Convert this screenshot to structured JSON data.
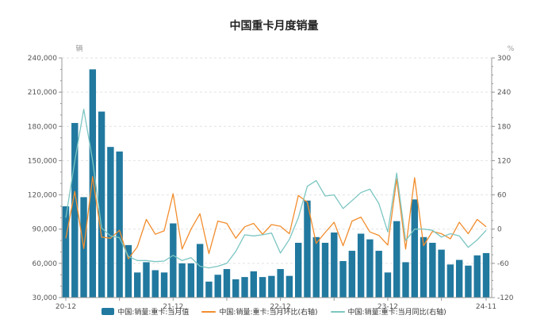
{
  "title": "中国重卡月度销量",
  "left_axis": {
    "unit": "辆",
    "min": 30000,
    "max": 240000,
    "step": 30000,
    "tick_labels": [
      "30,000",
      "60,000",
      "90,000",
      "120,000",
      "150,000",
      "180,000",
      "210,000",
      "240,000"
    ]
  },
  "right_axis": {
    "unit": "%",
    "min": -120,
    "max": 300,
    "step": 60,
    "tick_labels": [
      "-120",
      "-60",
      "0",
      "60",
      "120",
      "180",
      "240",
      "300"
    ]
  },
  "x_axis": {
    "tick_label_indices": [
      0,
      12,
      24,
      36,
      47
    ],
    "tick_labels": [
      "20-12",
      "21-12",
      "22-12",
      "23-12",
      "24-11"
    ]
  },
  "legend": [
    {
      "label": "中国:销量:重卡:当月值",
      "type": "bar",
      "color": "#21799f"
    },
    {
      "label": "中国:销量:重卡:当月环比(右轴)",
      "type": "line",
      "color": "#f28d2d"
    },
    {
      "label": "中国:销量:重卡:当月同比(右轴)",
      "type": "line",
      "color": "#7cc6c2"
    }
  ],
  "colors": {
    "bar": "#21799f",
    "mom_line": "#f28d2d",
    "yoy_line": "#7cc6c2",
    "grid": "#e2e2e2",
    "axis": "#999999",
    "tick_text": "#555555",
    "unit_text": "#999999"
  },
  "chart_data": {
    "type": "bar",
    "title": "中国重卡月度销量",
    "categories": [
      "20-12",
      "21-01",
      "21-02",
      "21-03",
      "21-04",
      "21-05",
      "21-06",
      "21-07",
      "21-08",
      "21-09",
      "21-10",
      "21-11",
      "21-12",
      "22-01",
      "22-02",
      "22-03",
      "22-04",
      "22-05",
      "22-06",
      "22-07",
      "22-08",
      "22-09",
      "22-10",
      "22-11",
      "22-12",
      "23-01",
      "23-02",
      "23-03",
      "23-04",
      "23-05",
      "23-06",
      "23-07",
      "23-08",
      "23-09",
      "23-10",
      "23-11",
      "23-12",
      "24-01",
      "24-02",
      "24-03",
      "24-04",
      "24-05",
      "24-06",
      "24-07",
      "24-08",
      "24-09",
      "24-10",
      "24-11"
    ],
    "series": [
      {
        "name": "中国:销量:重卡:当月值",
        "type": "bar",
        "axis": "left",
        "unit": "辆",
        "values": [
          110000,
          183000,
          118000,
          230000,
          193000,
          162000,
          158000,
          76000,
          52000,
          61000,
          54000,
          52000,
          95000,
          60000,
          60000,
          77000,
          44000,
          50000,
          55000,
          46000,
          48000,
          53000,
          48000,
          49000,
          55000,
          49000,
          78000,
          115000,
          83000,
          78000,
          87000,
          62000,
          71000,
          86000,
          81000,
          71000,
          52000,
          97000,
          61000,
          116000,
          83000,
          78000,
          72000,
          59000,
          63000,
          58000,
          67000,
          69000
        ]
      },
      {
        "name": "中国:销量:重卡:当月环比(右轴)",
        "type": "line",
        "axis": "right",
        "unit": "%",
        "values": [
          -16,
          66,
          -34,
          92,
          -14,
          -16,
          -2,
          -52,
          -31,
          17,
          -9,
          -3,
          62,
          -35,
          0,
          27,
          -43,
          14,
          10,
          -16,
          4,
          10,
          -9,
          8,
          5,
          -8,
          59,
          47,
          -25,
          -6,
          12,
          -29,
          14,
          21,
          -5,
          -11,
          -28,
          88,
          -35,
          90,
          -29,
          -4,
          -8,
          -17,
          12,
          -8,
          17,
          4
        ]
      },
      {
        "name": "中国:销量:重卡:当月同比(右轴)",
        "type": "line",
        "axis": "right",
        "unit": "%",
        "values": [
          20,
          119,
          210,
          120,
          2,
          -12,
          -15,
          -48,
          -55,
          -55,
          -57,
          -56,
          -46,
          -55,
          -50,
          -65,
          -68,
          -65,
          -60,
          -39,
          -10,
          -12,
          -10,
          -7,
          -42,
          -18,
          20,
          75,
          85,
          58,
          60,
          36,
          50,
          64,
          70,
          45,
          -5,
          98,
          -20,
          0,
          0,
          -2,
          -14,
          -8,
          -12,
          -32,
          -19,
          -2
        ]
      }
    ],
    "ylabel_left": "辆",
    "ylabel_right": "%",
    "ylim_left": [
      30000,
      240000
    ],
    "ylim_right": [
      -120,
      300
    ],
    "grid": "horizontal-dashed",
    "legend_position": "bottom"
  }
}
